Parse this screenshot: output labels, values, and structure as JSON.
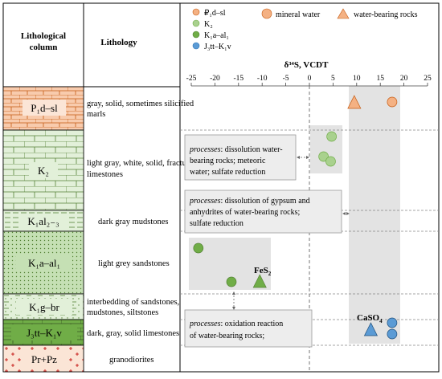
{
  "header": {
    "column_title_line1": "Lithological",
    "column_title_line2": "column",
    "lithology_title": "Lithology"
  },
  "axis": {
    "title": "δ³⁴S, VCDT",
    "ticks": [
      "-25",
      "-20",
      "-15",
      "-10",
      "-5",
      "0",
      "5",
      "10",
      "15",
      "20",
      "25"
    ]
  },
  "layers": [
    {
      "code": "P₁d–sl",
      "description_lines": [
        "gray, solid, sometimes silicified",
        "marls"
      ]
    },
    {
      "code": "K₂",
      "description_lines": [
        "light gray, white, solid, fractured",
        "limestones"
      ]
    },
    {
      "code": "K₁al₂₋₃",
      "description_lines": [
        "dark gray mudstones"
      ]
    },
    {
      "code": "K₁a–al₁",
      "description_lines": [
        "light grey sandstones"
      ]
    },
    {
      "code": "K₁g–br",
      "description_lines": [
        "interbedding of sandstones,",
        "mudstones, siltstones"
      ]
    },
    {
      "code": "J₃tt–K₁v",
      "description_lines": [
        "dark, gray, solid limestones"
      ]
    },
    {
      "code": "Pr+Pz",
      "description_lines": [
        "granodiorites"
      ]
    }
  ],
  "legend": {
    "series": [
      {
        "label": "₽₁d–sl",
        "color": "#f4b183"
      },
      {
        "label": "K₂",
        "color": "#a9d18e"
      },
      {
        "label": "K₁a–al₁",
        "color": "#70ad47"
      },
      {
        "label": "J₃tt–K₁v",
        "color": "#2e75b6"
      }
    ],
    "mineral_water": "mineral water",
    "water_bearing_rocks": "water-bearing rocks"
  },
  "annotations": {
    "fes2": "FeS",
    "fes2_sub": "2",
    "caso4": "CaSO",
    "caso4_sub": "4",
    "proc1_lines": [
      {
        "italic": "processes",
        "rest": ": dissolution water-"
      },
      {
        "italic": "",
        "rest": "bearing rocks; meteoric"
      },
      {
        "italic": "",
        "rest": "water; sulfate reduction"
      }
    ],
    "proc2_lines": [
      {
        "italic": "processes",
        "rest": ": dissolution of gypsum and"
      },
      {
        "italic": "",
        "rest": "anhydrites of water-bearing rocks;"
      },
      {
        "italic": "",
        "rest": "sulfate reduction"
      }
    ],
    "proc3_lines": [
      {
        "italic": "processes",
        "rest": ": oxidation reaction"
      },
      {
        "italic": "",
        "rest": "of water-bearing rocks;"
      }
    ]
  },
  "chart_data": {
    "type": "scatter",
    "title": "",
    "xlabel": "δ³⁴S, VCDT",
    "xlim": [
      -25,
      25
    ],
    "series": [
      {
        "name": "P₁d–sl",
        "color": "#f4b183",
        "points": [
          {
            "layer": "P₁d–sl",
            "x": 17.5,
            "kind": "mineral water"
          },
          {
            "layer": "P₁d–sl",
            "x": 9.5,
            "kind": "water-bearing rocks"
          }
        ]
      },
      {
        "name": "K₂",
        "color": "#a9d18e",
        "points": [
          {
            "layer": "K₂",
            "x": 4.7,
            "kind": "mineral water"
          },
          {
            "layer": "K₂",
            "x": 3.0,
            "kind": "mineral water"
          },
          {
            "layer": "K₂",
            "x": 4.5,
            "kind": "mineral water"
          }
        ]
      },
      {
        "name": "K₁a–al₁",
        "color": "#70ad47",
        "points": [
          {
            "layer": "K₁a–al₁",
            "x": -23.5,
            "kind": "mineral water"
          },
          {
            "layer": "K₁a–al₁",
            "x": -16.5,
            "kind": "mineral water"
          },
          {
            "layer": "K₁a–al₁",
            "x": -10.5,
            "kind": "water-bearing rocks"
          }
        ]
      },
      {
        "name": "J₃tt–K₁v",
        "color": "#2e75b6",
        "points": [
          {
            "layer": "J₃tt–K₁v",
            "x": 17.5,
            "kind": "mineral water"
          },
          {
            "layer": "J₃tt–K₁v",
            "x": 17.5,
            "kind": "mineral water"
          },
          {
            "layer": "J₃tt–K₁v",
            "x": 13.0,
            "kind": "water-bearing rocks"
          }
        ]
      }
    ]
  }
}
